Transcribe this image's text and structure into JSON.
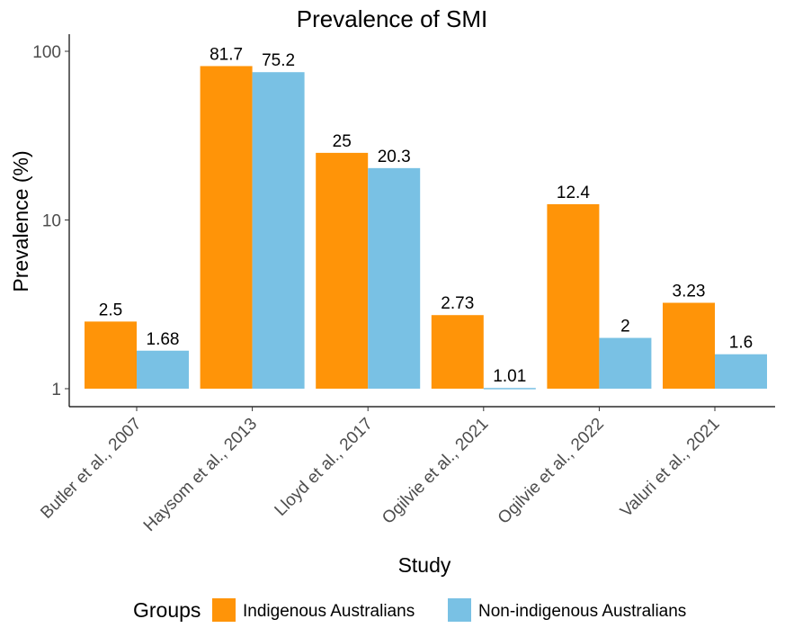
{
  "chart_data": {
    "type": "bar",
    "title": "Prevalence of SMI",
    "xlabel": "Study",
    "ylabel": "Prevalence (%)",
    "yscale": "log10",
    "ylim": [
      1,
      100
    ],
    "yticks": [
      1,
      10,
      100
    ],
    "ytick_labels": [
      "1",
      "10",
      "100"
    ],
    "categories": [
      "Butler et al.,  2007",
      "Haysom et al.,  2013",
      "Lloyd et al.,  2017",
      "Ogilvie et al.,  2021",
      "Ogilvie et al.,  2022",
      "Valuri et al.,  2021"
    ],
    "series": [
      {
        "name": "Indigenous Australians",
        "color": "#FF9408",
        "values": [
          2.5,
          81.7,
          25,
          2.73,
          12.4,
          3.23
        ],
        "labels": [
          "2.5",
          "81.7",
          "25",
          "2.73",
          "12.4",
          "3.23"
        ]
      },
      {
        "name": "Non-indigenous Australians",
        "color": "#79C1E4",
        "values": [
          1.68,
          75.2,
          20.3,
          1.01,
          2,
          1.6
        ],
        "labels": [
          "1.68",
          "75.2",
          "20.3",
          "1.01",
          "2",
          "1.6"
        ]
      }
    ],
    "legend": {
      "title": "Groups",
      "position": "bottom"
    }
  }
}
